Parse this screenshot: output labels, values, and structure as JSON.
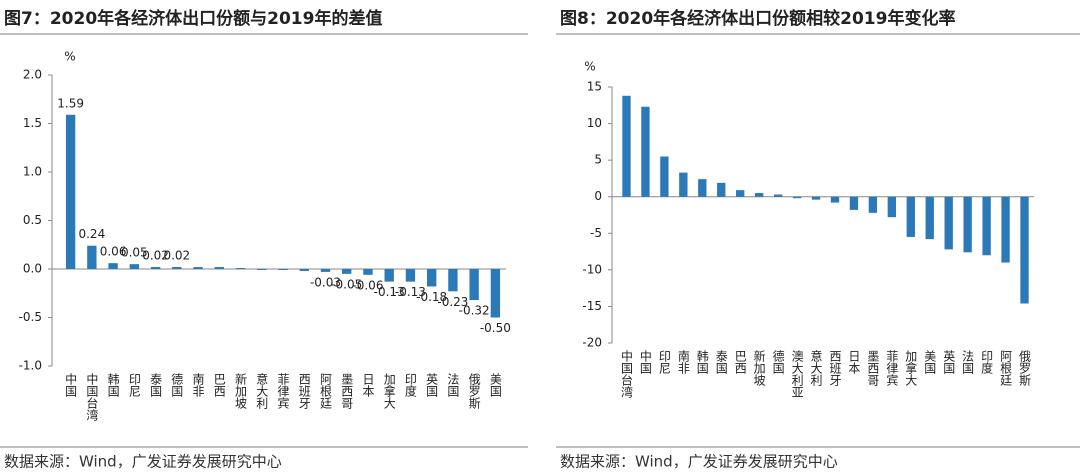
{
  "chart_data": [
    {
      "type": "bar",
      "title": "图7：2020年各经济体出口份额与2019年的差值",
      "y_unit": "%",
      "categories": [
        "中国",
        "中国台湾",
        "韩国",
        "印尼",
        "泰国",
        "德国",
        "南非",
        "巴西",
        "新加坡",
        "意大利",
        "菲律宾",
        "西班牙",
        "阿根廷",
        "墨西哥",
        "日本",
        "加拿大",
        "印度",
        "英国",
        "法国",
        "俄罗斯",
        "美国"
      ],
      "values": [
        1.59,
        0.24,
        0.06,
        0.05,
        0.02,
        0.02,
        0.02,
        0.02,
        0.01,
        -0.01,
        -0.01,
        -0.02,
        -0.03,
        -0.05,
        -0.06,
        -0.13,
        -0.13,
        -0.18,
        -0.23,
        -0.32,
        -0.5
      ],
      "value_labels": [
        "1.59",
        "0.24",
        "0.06",
        "0.05",
        "0.02",
        "0.02",
        null,
        null,
        null,
        null,
        null,
        null,
        "-0.03",
        "-0.05",
        "-0.06",
        "-0.13",
        "-0.13",
        "-0.18",
        "-0.23",
        "-0.32",
        "-0.50"
      ],
      "color": "#2b79b7",
      "ylim": [
        -1.0,
        2.0
      ],
      "yticks": [
        {
          "value": -1,
          "label": "-1.0"
        },
        -0.5,
        {
          "value": 0,
          "label": "0.0"
        },
        0.5,
        {
          "value": 1,
          "label": "1.0"
        },
        1.5,
        {
          "value": 2,
          "label": "2.0"
        }
      ],
      "source": "数据来源：Wind，广发证券发展研究中心"
    },
    {
      "type": "bar",
      "title": "图8：2020年各经济体出口份额相较2019年变化率",
      "y_unit": "%",
      "categories": [
        "中国台湾",
        "中国",
        "印尼",
        "南非",
        "韩国",
        "泰国",
        "巴西",
        "新加坡",
        "德国",
        "澳大利亚",
        "意大利",
        "西班牙",
        "日本",
        "墨西哥",
        "菲律宾",
        "加拿大",
        "美国",
        "英国",
        "法国",
        "印度",
        "阿根廷",
        "俄罗斯"
      ],
      "values": [
        13.8,
        12.3,
        5.5,
        3.3,
        2.4,
        1.9,
        0.9,
        0.5,
        0.3,
        -0.2,
        -0.4,
        -0.8,
        -1.8,
        -2.2,
        -2.8,
        -5.5,
        -5.8,
        -7.2,
        -7.6,
        -8.0,
        -9.0,
        -14.6
      ],
      "color": "#2b79b7",
      "ylim": [
        -20,
        15
      ],
      "yticks": [
        -20,
        -15,
        -10,
        -5,
        0,
        5,
        10,
        15
      ],
      "source": "数据来源：Wind，广发证券发展研究中心"
    }
  ]
}
